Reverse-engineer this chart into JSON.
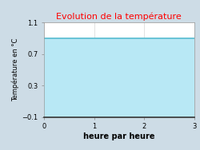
{
  "title": "Evolution de la température",
  "title_color": "#ff0000",
  "xlabel": "heure par heure",
  "ylabel": "Température en °C",
  "xlim": [
    0,
    3
  ],
  "ylim": [
    -0.1,
    1.1
  ],
  "yticks": [
    -0.1,
    0.3,
    0.7,
    1.1
  ],
  "xticks": [
    0,
    1,
    2,
    3
  ],
  "line_y": 0.9,
  "line_color": "#55bbd0",
  "fill_color": "#b8e8f5",
  "fill_alpha": 1.0,
  "background_color": "#cddce6",
  "plot_bg_color": "#ffffff",
  "line_width": 1.2,
  "x_data": [
    0,
    3
  ],
  "y_data": [
    0.9,
    0.9
  ]
}
